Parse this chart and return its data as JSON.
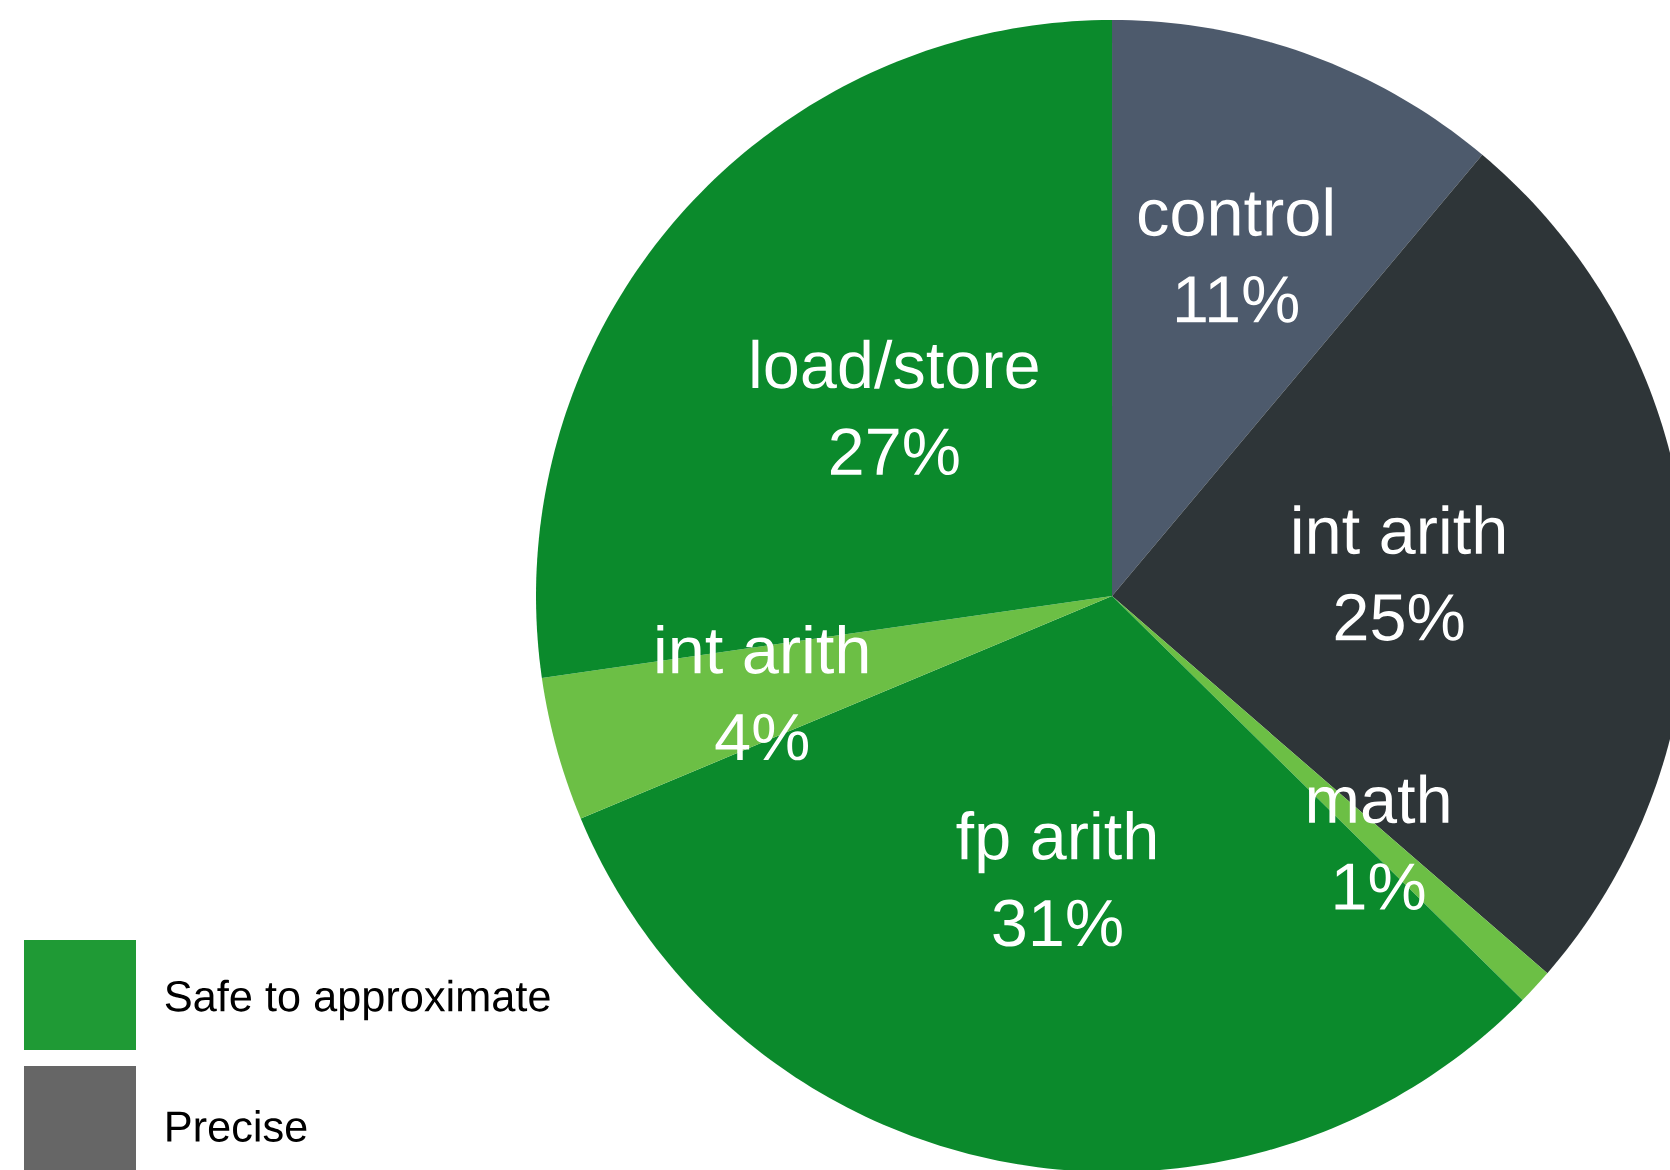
{
  "chart_data": {
    "type": "pie",
    "categories": [
      "control",
      "int arith",
      "math",
      "fp arith",
      "int arith",
      "load/store"
    ],
    "values": [
      11,
      25,
      1,
      31,
      4,
      27
    ],
    "colors": [
      "#4d5a6c",
      "#2e3538",
      "#6cbf45",
      "#0b8a2c",
      "#6cbf45",
      "#0b8a2c"
    ],
    "value_labels": [
      "11%",
      "25%",
      "1%",
      "31%",
      "4%",
      "27%"
    ],
    "annotations": [
      "Safe to approximate",
      "Precise"
    ]
  }
}
